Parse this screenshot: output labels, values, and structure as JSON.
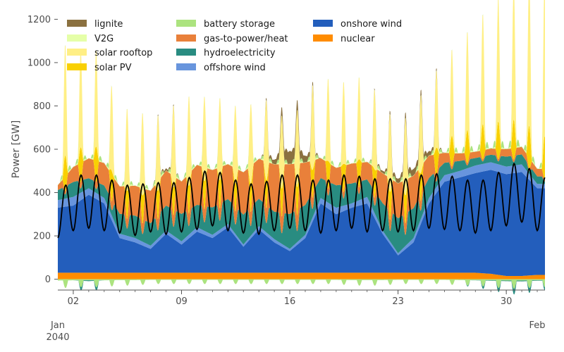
{
  "chart_data": {
    "type": "area",
    "stacked": true,
    "title": "",
    "xlabel": "",
    "ylabel": "Power [GW]",
    "xlim": [
      "2040-01-01T00:00",
      "2040-02-01T12:00"
    ],
    "ylim": [
      -50,
      1250
    ],
    "yticks": [
      0,
      200,
      400,
      600,
      800,
      1000,
      1200
    ],
    "xticks": [
      {
        "value": "2040-01-02",
        "label": "02"
      },
      {
        "value": "2040-01-09",
        "label": "09"
      },
      {
        "value": "2040-01-16",
        "label": "16"
      },
      {
        "value": "2040-01-23",
        "label": "23"
      },
      {
        "value": "2040-01-30",
        "label": "30"
      }
    ],
    "x_offset_labels": [
      {
        "value": "2040-01-01",
        "text": "Jan",
        "subtext": "2040"
      },
      {
        "value": "2040-02-01",
        "text": "Feb",
        "subtext": ""
      }
    ],
    "grid": false,
    "legend_position": "top-left",
    "legend_columns": 3,
    "x": [
      "2040-01-01",
      "2040-01-02",
      "2040-01-03",
      "2040-01-04",
      "2040-01-05",
      "2040-01-06",
      "2040-01-07",
      "2040-01-08",
      "2040-01-09",
      "2040-01-10",
      "2040-01-11",
      "2040-01-12",
      "2040-01-13",
      "2040-01-14",
      "2040-01-15",
      "2040-01-16",
      "2040-01-17",
      "2040-01-18",
      "2040-01-19",
      "2040-01-20",
      "2040-01-21",
      "2040-01-22",
      "2040-01-23",
      "2040-01-24",
      "2040-01-25",
      "2040-01-26",
      "2040-01-27",
      "2040-01-28",
      "2040-01-29",
      "2040-01-30",
      "2040-01-31",
      "2040-02-01"
    ],
    "series": [
      {
        "name": "nuclear",
        "color": "#ff8c00",
        "values": [
          30,
          30,
          30,
          30,
          30,
          30,
          30,
          30,
          30,
          30,
          30,
          30,
          30,
          30,
          30,
          30,
          30,
          30,
          30,
          30,
          30,
          30,
          30,
          30,
          30,
          30,
          30,
          30,
          25,
          15,
          15,
          20
        ]
      },
      {
        "name": "onshore wind",
        "color": "#235ebc",
        "values": [
          300,
          310,
          360,
          320,
          160,
          140,
          110,
          180,
          130,
          190,
          160,
          210,
          120,
          200,
          140,
          100,
          160,
          320,
          270,
          300,
          320,
          180,
          80,
          140,
          320,
          420,
          440,
          460,
          480,
          470,
          480,
          400
        ]
      },
      {
        "name": "offshore wind",
        "color": "#6895dd",
        "values": [
          35,
          40,
          30,
          25,
          20,
          20,
          15,
          15,
          15,
          20,
          15,
          15,
          10,
          15,
          15,
          10,
          15,
          25,
          30,
          20,
          30,
          15,
          10,
          20,
          25,
          30,
          30,
          35,
          35,
          35,
          35,
          20
        ]
      },
      {
        "name": "hydroelectricity",
        "color": "#298c81",
        "values": [
          40,
          60,
          40,
          50,
          80,
          90,
          90,
          100,
          110,
          90,
          110,
          100,
          120,
          110,
          110,
          140,
          120,
          80,
          90,
          80,
          70,
          110,
          140,
          120,
          80,
          50,
          40,
          30,
          30,
          40,
          40,
          30
        ]
      },
      {
        "name": "gas-to-power/heat",
        "color": "#e9803a",
        "values": [
          20,
          60,
          80,
          90,
          110,
          120,
          130,
          140,
          130,
          160,
          150,
          140,
          170,
          160,
          190,
          200,
          170,
          80,
          70,
          80,
          70,
          120,
          140,
          130,
          90,
          40,
          30,
          25,
          25,
          30,
          30,
          30
        ]
      },
      {
        "name": "solar PV",
        "color": "#f9d002",
        "values": [
          80,
          70,
          80,
          70,
          60,
          60,
          60,
          60,
          60,
          60,
          60,
          60,
          60,
          60,
          60,
          60,
          60,
          60,
          60,
          60,
          60,
          60,
          60,
          60,
          60,
          60,
          70,
          70,
          80,
          80,
          90,
          90
        ]
      },
      {
        "name": "solar rooftop",
        "color": "#ffef85",
        "values": [
          270,
          200,
          220,
          190,
          170,
          180,
          170,
          150,
          200,
          180,
          180,
          170,
          160,
          180,
          160,
          150,
          180,
          180,
          170,
          180,
          170,
          170,
          160,
          170,
          160,
          170,
          200,
          220,
          250,
          280,
          300,
          340
        ]
      },
      {
        "name": "V2G",
        "color": "#e5ffa8",
        "values": [
          5,
          5,
          5,
          5,
          5,
          5,
          5,
          5,
          5,
          5,
          5,
          5,
          5,
          5,
          5,
          5,
          5,
          5,
          5,
          5,
          5,
          5,
          5,
          5,
          5,
          5,
          5,
          5,
          5,
          5,
          5,
          5
        ]
      },
      {
        "name": "battery storage",
        "color": "#ace37f",
        "values": [
          10,
          15,
          10,
          15,
          10,
          10,
          10,
          10,
          10,
          10,
          10,
          10,
          10,
          10,
          10,
          10,
          10,
          10,
          10,
          10,
          10,
          10,
          10,
          10,
          10,
          10,
          15,
          15,
          20,
          20,
          20,
          15
        ]
      },
      {
        "name": "lignite",
        "color": "#8b7140",
        "values": [
          0,
          0,
          0,
          0,
          0,
          0,
          0,
          10,
          0,
          0,
          0,
          0,
          0,
          0,
          20,
          60,
          30,
          0,
          0,
          0,
          0,
          10,
          20,
          30,
          20,
          0,
          0,
          0,
          0,
          0,
          0,
          0
        ]
      }
    ],
    "negative_series": [
      {
        "name": "battery storage",
        "color": "#ace37f",
        "values": [
          -30,
          -25,
          -25,
          -25,
          -20,
          -20,
          -15,
          -15,
          -15,
          -15,
          -15,
          -15,
          -15,
          -15,
          -15,
          -15,
          -15,
          -15,
          -15,
          -20,
          -20,
          -20,
          -15,
          -15,
          -15,
          -15,
          -20,
          -20,
          -25,
          -30,
          -30,
          -25
        ]
      },
      {
        "name": "hydroelectricity",
        "color": "#298c81",
        "values": [
          0,
          0,
          -20,
          0,
          0,
          0,
          0,
          0,
          0,
          0,
          0,
          0,
          0,
          0,
          0,
          0,
          0,
          0,
          0,
          0,
          0,
          0,
          0,
          0,
          0,
          0,
          0,
          -5,
          -10,
          -15,
          -20,
          -10
        ]
      }
    ],
    "load_line": {
      "name": "",
      "color": "#000000",
      "values": [
        340,
        400,
        420,
        400,
        380,
        360,
        390,
        370,
        390,
        410,
        440,
        400,
        380,
        370,
        400,
        420,
        400,
        380,
        400,
        420,
        390,
        400,
        390,
        400,
        420,
        410,
        400,
        380,
        400,
        440,
        470,
        400
      ]
    },
    "legend_order": [
      "lignite",
      "V2G",
      "solar rooftop",
      "solar PV",
      "battery storage",
      "gas-to-power/heat",
      "hydroelectricity",
      "offshore wind",
      "onshore wind",
      "nuclear"
    ]
  }
}
